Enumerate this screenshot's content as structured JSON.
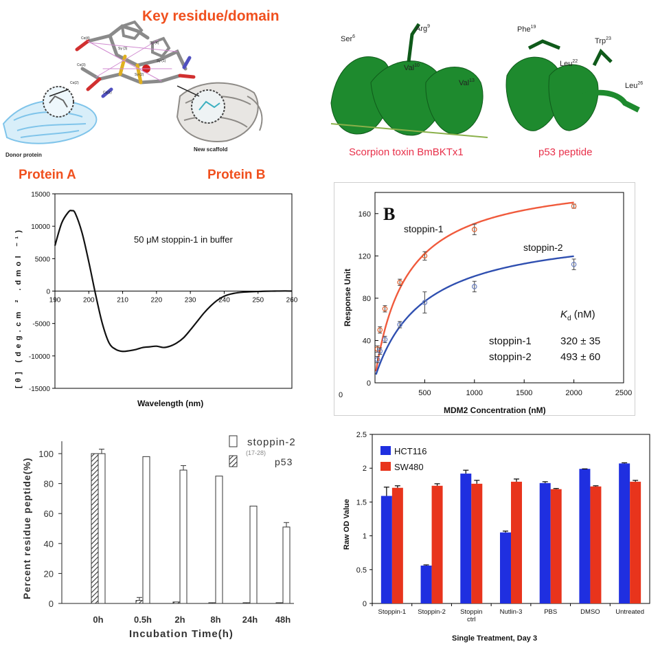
{
  "panel_a": {
    "title": "Key residue/domain",
    "donor_caption": "Donor protein",
    "scaffold_caption": "New scaffold",
    "protein_a": "Protein A",
    "protein_b": "Protein B",
    "atom_labels": [
      "Cα(4)",
      "Sγ (3)",
      "Sγ (4)",
      "Cα(3)",
      "Sγ (1)",
      "Sγ (2)",
      "Cα(2)",
      "Cα(1)"
    ]
  },
  "panel_b": {
    "labels": [
      "Ser",
      "Arg",
      "Val",
      "Val",
      "Phe",
      "Leu",
      "Trp",
      "Leu"
    ],
    "superscripts": [
      "6",
      "9",
      "10",
      "13",
      "19",
      "22",
      "23",
      "26"
    ],
    "caption_left": "Scorpion toxin BmBKTx1",
    "caption_right": "p53 peptide",
    "colors": {
      "helix": "#1e8a2e",
      "caption": "#e8304a"
    }
  },
  "chart_data": [
    {
      "type": "line",
      "annotation": "50 μM stoppin-1 in buffer",
      "xlabel": "Wavelength (nm)",
      "ylabel": "[θ] (deg.cm ² .dmol ⁻¹)",
      "xlim": [
        190,
        260
      ],
      "ylim": [
        -15000,
        15000
      ],
      "xticks": [
        "190",
        "200",
        "210",
        "220",
        "230",
        "240",
        "250",
        "260"
      ],
      "yticks": [
        "15000",
        "10000",
        "5000",
        "0",
        "-5000",
        "-10000",
        "-15000"
      ],
      "x": [
        190,
        192,
        194,
        195,
        196,
        198,
        200,
        202,
        204,
        206,
        208,
        210,
        212,
        214,
        216,
        218,
        220,
        222,
        224,
        226,
        228,
        230,
        232,
        234,
        236,
        238,
        240,
        242,
        244,
        246,
        248,
        250,
        252,
        255,
        258,
        260
      ],
      "y": [
        7000,
        10500,
        12200,
        12400,
        12000,
        9000,
        4500,
        -500,
        -5000,
        -8000,
        -9000,
        -9300,
        -9200,
        -9000,
        -8700,
        -8600,
        -8500,
        -8700,
        -8500,
        -8000,
        -7200,
        -6000,
        -4700,
        -3400,
        -2300,
        -1400,
        -800,
        -450,
        -250,
        -150,
        -100,
        -60,
        -30,
        0,
        20,
        0
      ],
      "color": "#111111"
    },
    {
      "type": "scatter",
      "panel_label": "B",
      "xlabel": "MDM2 Concentration (nM)",
      "ylabel": "Response Unit",
      "xlim": [
        0,
        2500
      ],
      "ylim": [
        0,
        180
      ],
      "xticks": [
        "0",
        "500",
        "1000",
        "1500",
        "2000",
        "2500"
      ],
      "yticks": [
        "0",
        "40",
        "80",
        "120",
        "160"
      ],
      "series": [
        {
          "name": "stoppin-1",
          "color": "#f05a3c",
          "x": [
            25,
            50,
            100,
            250,
            500,
            1000,
            2000
          ],
          "y": [
            32,
            50,
            70,
            95,
            120,
            145,
            167
          ],
          "err": [
            3,
            3,
            3,
            3,
            4,
            5,
            2
          ],
          "kd": 320,
          "bmax": 192
        },
        {
          "name": "stoppin-2",
          "color": "#2f4fb0",
          "x": [
            25,
            50,
            100,
            250,
            500,
            1000,
            2000
          ],
          "y": [
            22,
            30,
            41,
            55,
            76,
            91,
            112
          ],
          "err": [
            3,
            3,
            3,
            3,
            10,
            5,
            5
          ],
          "kd": 493,
          "bmax": 143
        }
      ],
      "kd_header": "K",
      "kd_header_sub": "d",
      "kd_unit": " (nM)",
      "kd_values": [
        "320 ± 35",
        "493 ± 60"
      ]
    },
    {
      "type": "bar",
      "xlabel": "Incubation Time(h)",
      "ylabel": "Percent residue peptide(%)",
      "ylim": [
        0,
        100
      ],
      "yticks": [
        "0",
        "20",
        "40",
        "60",
        "80",
        "100"
      ],
      "categories": [
        "0h",
        "0.5h",
        "2h",
        "8h",
        "24h",
        "48h"
      ],
      "series": [
        {
          "name": "p53",
          "name_sub": "(17-28)",
          "pattern": "hatched",
          "values": [
            100,
            2,
            1,
            0.5,
            0.5,
            0.5
          ],
          "err": [
            0,
            2,
            0,
            0,
            0,
            0
          ]
        },
        {
          "name": "stoppin-2",
          "pattern": "open",
          "values": [
            100,
            98,
            89,
            85,
            65,
            51
          ],
          "err": [
            3,
            0,
            3,
            0,
            0,
            3
          ]
        }
      ]
    },
    {
      "type": "bar",
      "xlabel": "Single Treatment, Day 3",
      "ylabel": "Raw OD Value",
      "ylim": [
        0,
        2.5
      ],
      "yticks": [
        "0",
        "0.5",
        "1",
        "1.5",
        "2",
        "2.5"
      ],
      "categories": [
        "Stoppin-1",
        "Stoppin-2",
        "Stoppin\nctrl",
        "Nutlin-3",
        "PBS",
        "DMSO",
        "Untreated"
      ],
      "series": [
        {
          "name": "HCT116",
          "color": "#1f2fe0",
          "values": [
            1.59,
            0.56,
            1.92,
            1.05,
            1.78,
            1.99,
            2.07
          ],
          "err": [
            0.13,
            0.01,
            0.05,
            0.02,
            0.02,
            0.0,
            0.01
          ]
        },
        {
          "name": "SW480",
          "color": "#e8341c",
          "values": [
            1.71,
            1.74,
            1.77,
            1.8,
            1.69,
            1.73,
            1.8
          ],
          "err": [
            0.03,
            0.03,
            0.05,
            0.04,
            0.01,
            0.01,
            0.02
          ]
        }
      ]
    }
  ]
}
